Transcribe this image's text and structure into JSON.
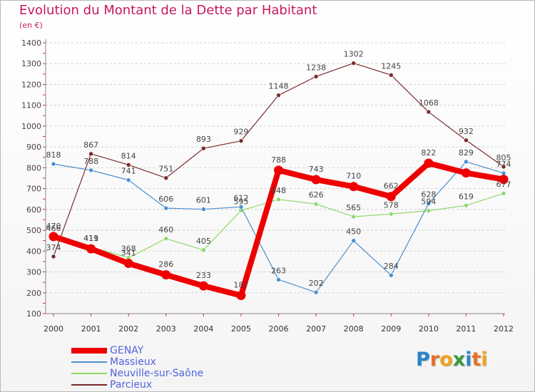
{
  "title": "Evolution du Montant de la Dette par Habitant",
  "subtitle": "(en €)",
  "logo": {
    "letters": [
      "P",
      "r",
      "o",
      "x",
      "i",
      "t",
      "i"
    ],
    "colors": [
      "#2a86c9",
      "#e8702a",
      "#f2a21b",
      "#3a9a3a",
      "#2a86c9",
      "#e8702a",
      "#f2a21b"
    ]
  },
  "chart_data": {
    "type": "line",
    "title": "Evolution du Montant de la Dette par Habitant",
    "xlabel": "",
    "ylabel": "(en €)",
    "x": [
      "2000",
      "2001",
      "2002",
      "2003",
      "2004",
      "2005",
      "2006",
      "2007",
      "2008",
      "2009",
      "2010",
      "2011",
      "2012"
    ],
    "ylim": [
      100,
      1400
    ],
    "yticks": [
      "100",
      "200",
      "300",
      "400",
      "500",
      "600",
      "700",
      "800",
      "900",
      "1000",
      "1100",
      "1200",
      "1300",
      "1400"
    ],
    "grid": "horizontal dashed",
    "legend_position": "bottom-left",
    "series": [
      {
        "name": "GENAY",
        "color": "#ee0000",
        "emphasis": "thick",
        "values": [
          470,
          411,
          341,
          286,
          233,
          187,
          788,
          743,
          710,
          662,
          822,
          775,
          744
        ],
        "labels": [
          "470",
          "411",
          "341",
          "286",
          "233",
          "187",
          "788",
          "743",
          "710",
          "662",
          "822",
          "",
          ""
        ]
      },
      {
        "name": "Massieux",
        "color": "#4a8fd0",
        "values": [
          818,
          788,
          741,
          606,
          601,
          612,
          263,
          202,
          450,
          284,
          628,
          829,
          774
        ],
        "labels": [
          "818",
          "788",
          "741",
          "606",
          "601",
          "612",
          "263",
          "202",
          "450",
          "284",
          "628",
          "829",
          "774"
        ]
      },
      {
        "name": "Neuville-sur-Saône",
        "color": "#8fd86a",
        "values": [
          466,
          419,
          368,
          460,
          405,
          595,
          648,
          626,
          565,
          578,
          594,
          619,
          677
        ],
        "labels": [
          "466",
          "419",
          "368",
          "460",
          "405",
          "595",
          "648",
          "626",
          "565",
          "578",
          "594",
          "619",
          "677"
        ]
      },
      {
        "name": "Parcieux",
        "color": "#7a2a2a",
        "values": [
          374,
          867,
          814,
          751,
          893,
          929,
          1148,
          1238,
          1302,
          1245,
          1068,
          932,
          805
        ],
        "labels": [
          "374",
          "867",
          "814",
          "751",
          "893",
          "929",
          "1148",
          "1238",
          "1302",
          "1245",
          "1068",
          "932",
          "805"
        ]
      }
    ]
  }
}
